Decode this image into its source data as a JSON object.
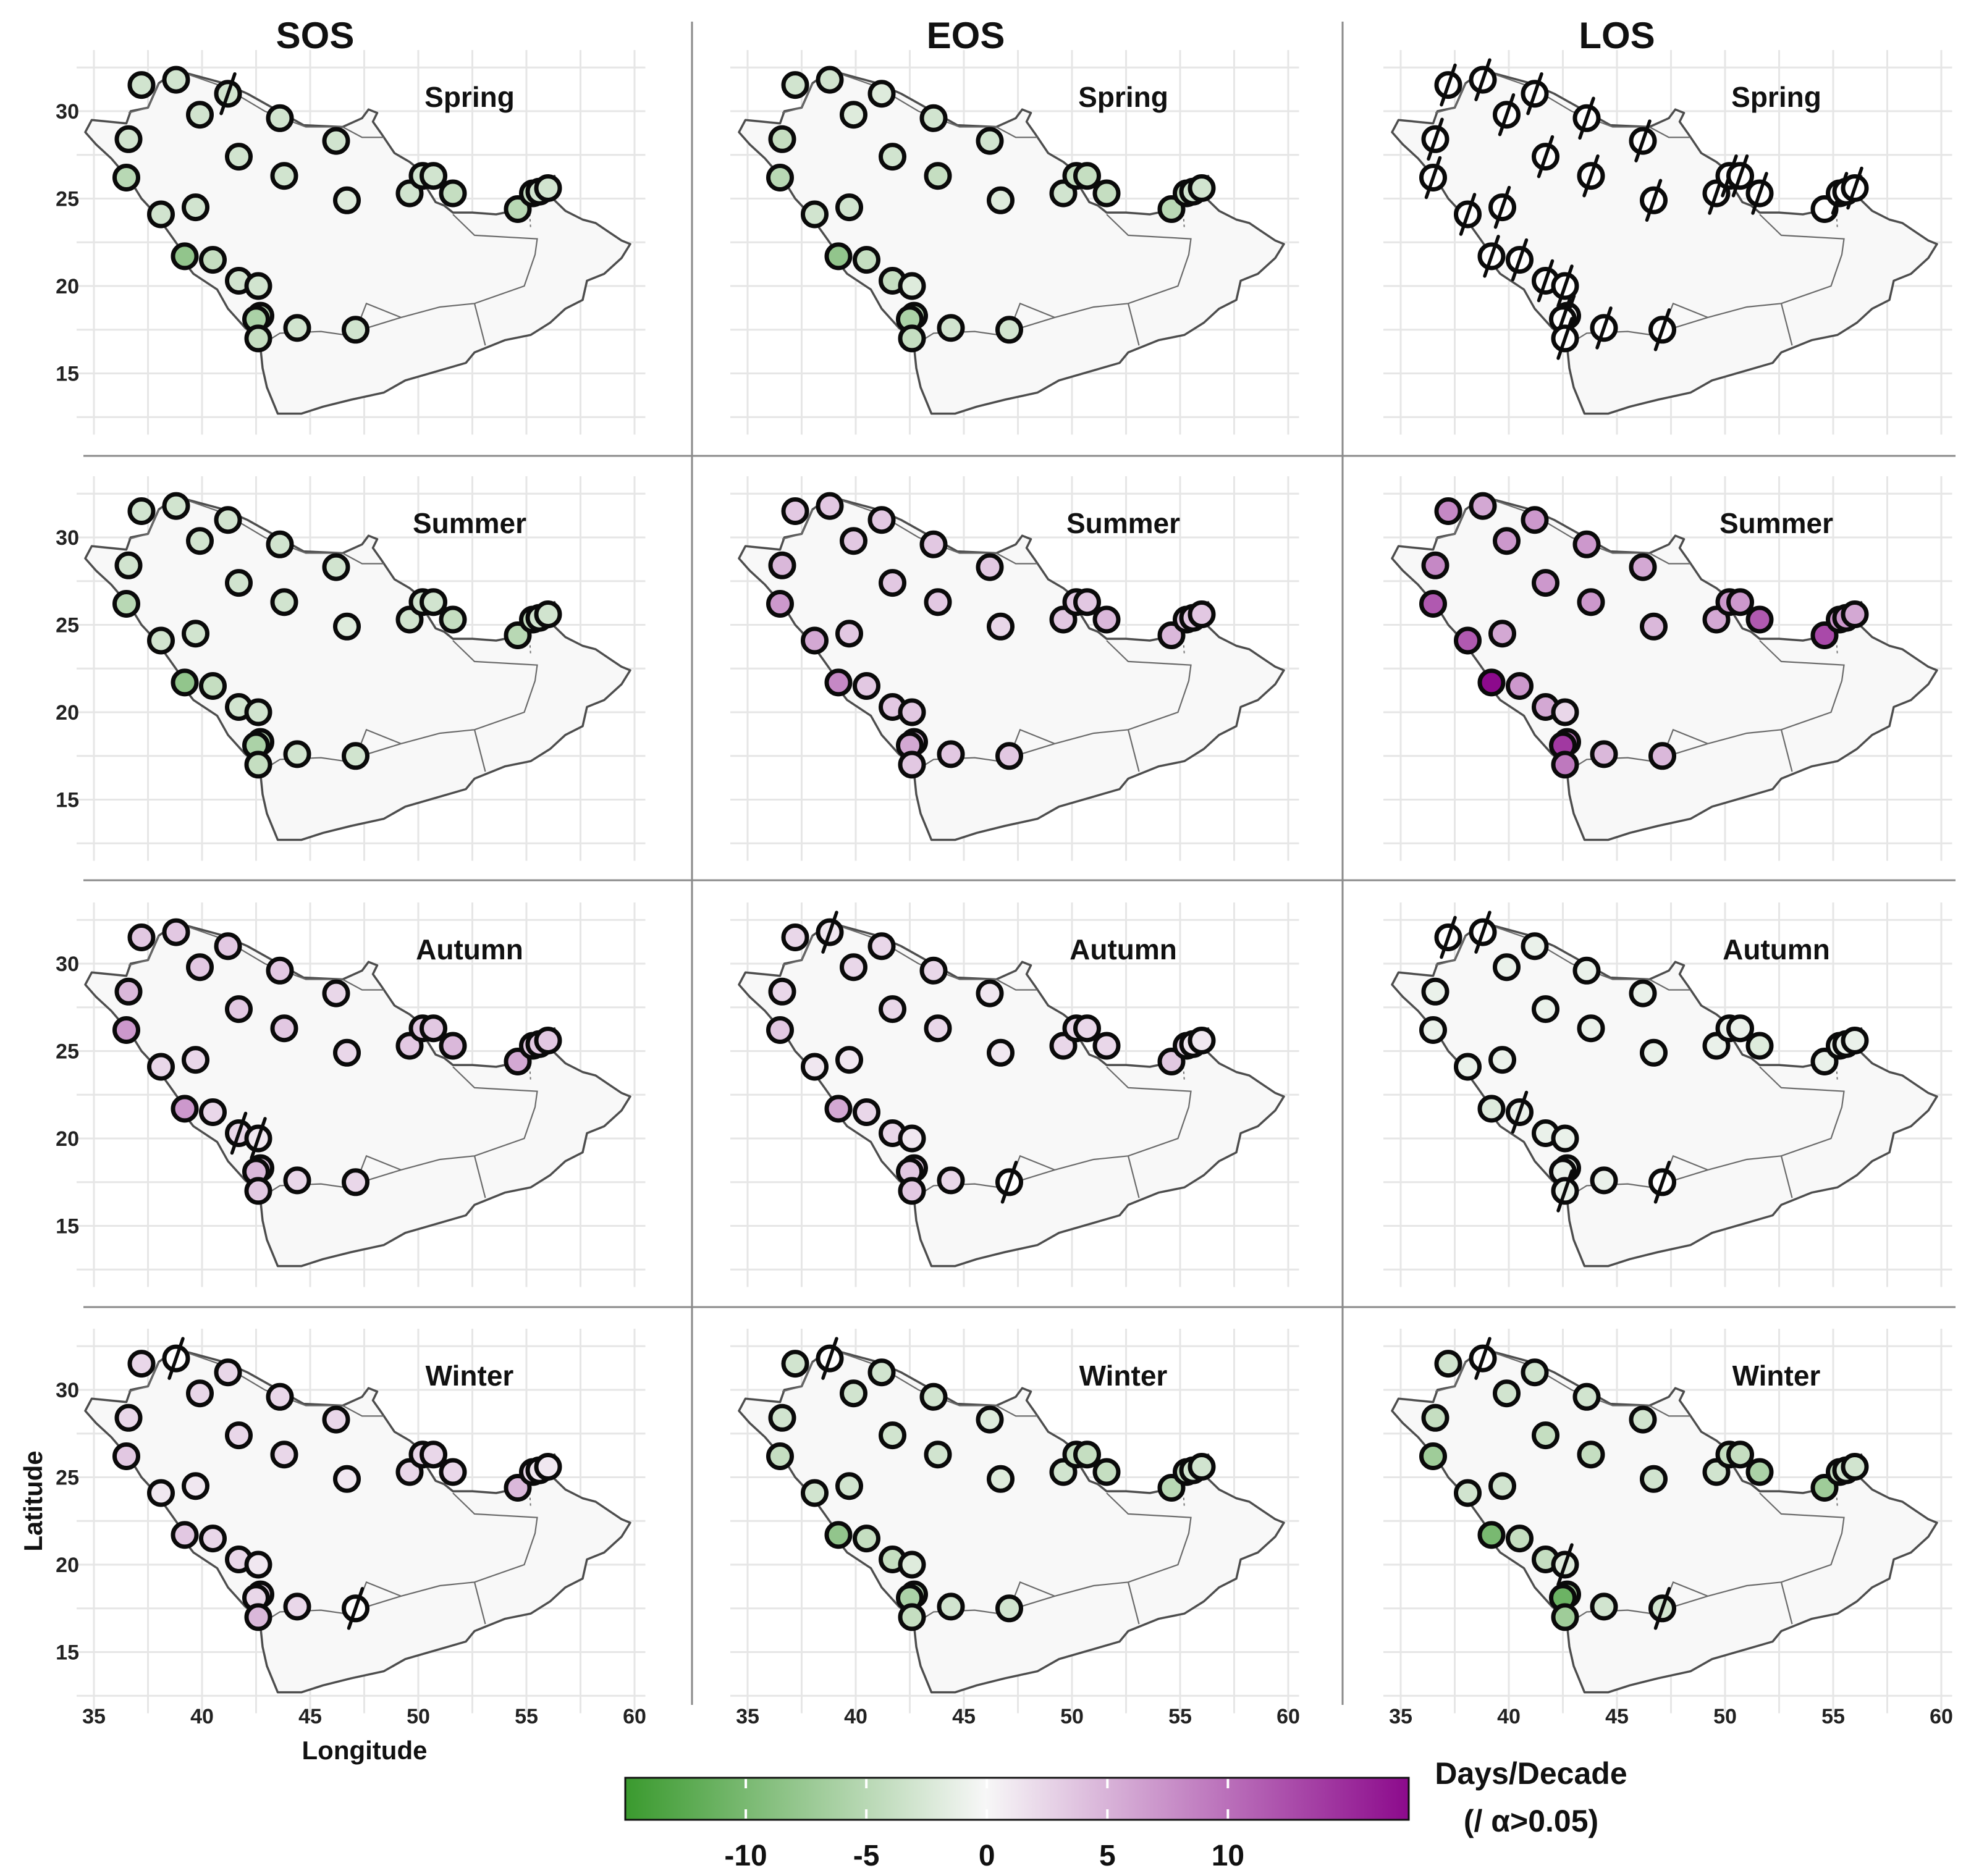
{
  "figure": {
    "columns": [
      "SOS",
      "EOS",
      "LOS"
    ],
    "rows": [
      "Spring",
      "Summer",
      "Autumn",
      "Winter"
    ],
    "x_axis_title": "Longitude",
    "y_axis_title": "Latitude",
    "lon_ticks": [
      "35",
      "40",
      "45",
      "50",
      "55",
      "60"
    ],
    "lat_ticks": [
      "15",
      "20",
      "25",
      "30"
    ]
  },
  "colorbar": {
    "title_line1": "Days/Decade",
    "title_line2": "(/ α>0.05)",
    "tick_labels": [
      "-10",
      "-5",
      "0",
      "5",
      "10"
    ],
    "range": [
      -15,
      17.5
    ],
    "low_color": "#3a9a2e",
    "mid_color": "#f7f7f7",
    "high_color": "#8c0a8c",
    "slash_meaning": "not significant (α>0.05)"
  },
  "chart_data": {
    "type": "map-scatter",
    "units": "days/decade",
    "xlabel": "Longitude",
    "ylabel": "Latitude",
    "xlim": [
      35,
      60
    ],
    "ylim": [
      12,
      33
    ],
    "stations": [
      [
        37.2,
        31.5
      ],
      [
        38.8,
        31.8
      ],
      [
        41.2,
        31.0
      ],
      [
        39.9,
        29.8
      ],
      [
        43.6,
        29.6
      ],
      [
        36.6,
        28.4
      ],
      [
        41.7,
        27.4
      ],
      [
        43.8,
        26.3
      ],
      [
        46.2,
        28.3
      ],
      [
        36.5,
        26.2
      ],
      [
        39.7,
        24.5
      ],
      [
        38.1,
        24.1
      ],
      [
        46.7,
        24.9
      ],
      [
        49.6,
        25.3
      ],
      [
        50.2,
        26.3
      ],
      [
        50.7,
        26.3
      ],
      [
        51.6,
        25.3
      ],
      [
        54.6,
        24.4
      ],
      [
        55.3,
        25.3
      ],
      [
        55.6,
        25.4
      ],
      [
        56.0,
        25.6
      ],
      [
        39.2,
        21.7
      ],
      [
        40.5,
        21.5
      ],
      [
        41.7,
        20.3
      ],
      [
        42.6,
        20.0
      ],
      [
        42.7,
        18.3
      ],
      [
        42.5,
        18.1
      ],
      [
        42.6,
        17.0
      ],
      [
        44.4,
        17.6
      ],
      [
        47.1,
        17.5
      ]
    ],
    "panels": [
      {
        "metric": "SOS",
        "season": "Spring",
        "values": [
          -3,
          -3,
          -3,
          -3,
          -3,
          -3,
          -3,
          -3,
          -3,
          -5,
          -3,
          -3,
          -2,
          -3,
          -3,
          -3,
          -4,
          -5,
          -4,
          -3,
          -3,
          -8,
          -4,
          -3,
          -3,
          -5,
          -6,
          -4,
          -3,
          -3
        ],
        "not_significant": [
          2
        ]
      },
      {
        "metric": "EOS",
        "season": "Spring",
        "values": [
          -3,
          -3,
          -2,
          -2,
          -3,
          -4,
          -3,
          -4,
          -3,
          -5,
          -3,
          -3,
          -2,
          -3,
          -4,
          -4,
          -4,
          -5,
          -4,
          -3,
          -3,
          -8,
          -4,
          -4,
          -2,
          -5,
          -6,
          -4,
          -3,
          -3
        ],
        "not_significant": []
      },
      {
        "metric": "LOS",
        "season": "Spring",
        "values": [
          0,
          0,
          0,
          0,
          0,
          0,
          0,
          0,
          0,
          0,
          0,
          0,
          0,
          0,
          0,
          0,
          0,
          0,
          0,
          0,
          0,
          0,
          0,
          0,
          0,
          0,
          0,
          0,
          0,
          0
        ],
        "not_significant": [
          0,
          1,
          2,
          3,
          4,
          5,
          6,
          7,
          8,
          9,
          10,
          11,
          12,
          13,
          14,
          15,
          16,
          18,
          20,
          21,
          22,
          23,
          24,
          25,
          26,
          27,
          28,
          29
        ]
      },
      {
        "metric": "SOS",
        "season": "Summer",
        "values": [
          -3,
          -3,
          -3,
          -3,
          -3,
          -3,
          -3,
          -3,
          -3,
          -5,
          -3,
          -3,
          -2,
          -3,
          -3,
          -3,
          -4,
          -5,
          -4,
          -3,
          -3,
          -8,
          -4,
          -3,
          -3,
          -5,
          -6,
          -4,
          -3,
          -3
        ],
        "not_significant": []
      },
      {
        "metric": "EOS",
        "season": "Summer",
        "values": [
          3,
          3,
          3,
          3,
          3,
          4,
          3,
          3,
          3,
          6,
          3,
          5,
          2,
          3,
          3,
          3,
          4,
          4,
          3,
          3,
          3,
          7,
          3,
          3,
          3,
          4,
          5,
          3,
          3,
          3
        ],
        "not_significant": []
      },
      {
        "metric": "LOS",
        "season": "Summer",
        "values": [
          7,
          5,
          6,
          6,
          6,
          7,
          6,
          6,
          5,
          10,
          5,
          10,
          4,
          5,
          6,
          6,
          10,
          11,
          6,
          6,
          5,
          15,
          6,
          5,
          2,
          8,
          12,
          8,
          4,
          4
        ],
        "not_significant": []
      },
      {
        "metric": "SOS",
        "season": "Autumn",
        "values": [
          3,
          3,
          3,
          3,
          3,
          4,
          3,
          3,
          2,
          6,
          2,
          2,
          2,
          3,
          3,
          3,
          4,
          5,
          3,
          3,
          3,
          6,
          2,
          2,
          1,
          3,
          4,
          3,
          2,
          2
        ],
        "not_significant": [
          23,
          24
        ]
      },
      {
        "metric": "EOS",
        "season": "Autumn",
        "values": [
          2,
          1,
          2,
          2,
          2,
          2,
          2,
          2,
          1,
          3,
          1,
          1,
          1,
          2,
          2,
          2,
          2,
          3,
          2,
          1,
          1,
          5,
          2,
          2,
          1,
          3,
          3,
          3,
          2,
          0
        ],
        "not_significant": [
          1,
          29
        ]
      },
      {
        "metric": "LOS",
        "season": "Autumn",
        "values": [
          0,
          0,
          -1,
          -1,
          -1,
          -1,
          -1,
          -1,
          -1,
          -1,
          -1,
          -1,
          -1,
          -1,
          -1,
          -1,
          -2,
          -1,
          -1,
          -1,
          -1,
          -2,
          -1,
          -1,
          -1,
          -1,
          -1,
          -1,
          -1,
          0
        ],
        "not_significant": [
          0,
          1,
          22,
          27,
          29
        ]
      },
      {
        "metric": "SOS",
        "season": "Winter",
        "values": [
          2,
          0,
          2,
          2,
          2,
          2,
          2,
          2,
          2,
          3,
          1,
          1,
          1,
          2,
          2,
          2,
          2,
          4,
          2,
          1,
          1,
          3,
          2,
          2,
          1,
          2,
          2,
          4,
          2,
          0
        ],
        "not_significant": [
          1,
          29
        ]
      },
      {
        "metric": "EOS",
        "season": "Winter",
        "values": [
          -3,
          0,
          -3,
          -3,
          -3,
          -3,
          -3,
          -3,
          -2,
          -4,
          -3,
          -3,
          -2,
          -3,
          -4,
          -4,
          -4,
          -5,
          -4,
          -3,
          -3,
          -8,
          -4,
          -4,
          -2,
          -5,
          -6,
          -4,
          -3,
          -3
        ],
        "not_significant": [
          1
        ]
      },
      {
        "metric": "LOS",
        "season": "Winter",
        "values": [
          -3,
          0,
          -3,
          -3,
          -3,
          -4,
          -4,
          -4,
          -3,
          -7,
          -3,
          -3,
          -3,
          -3,
          -4,
          -4,
          -6,
          -7,
          -4,
          -3,
          -3,
          -10,
          -4,
          -4,
          -2,
          -7,
          -11,
          -7,
          -3,
          -3
        ],
        "not_significant": [
          1,
          24,
          29
        ]
      }
    ]
  }
}
